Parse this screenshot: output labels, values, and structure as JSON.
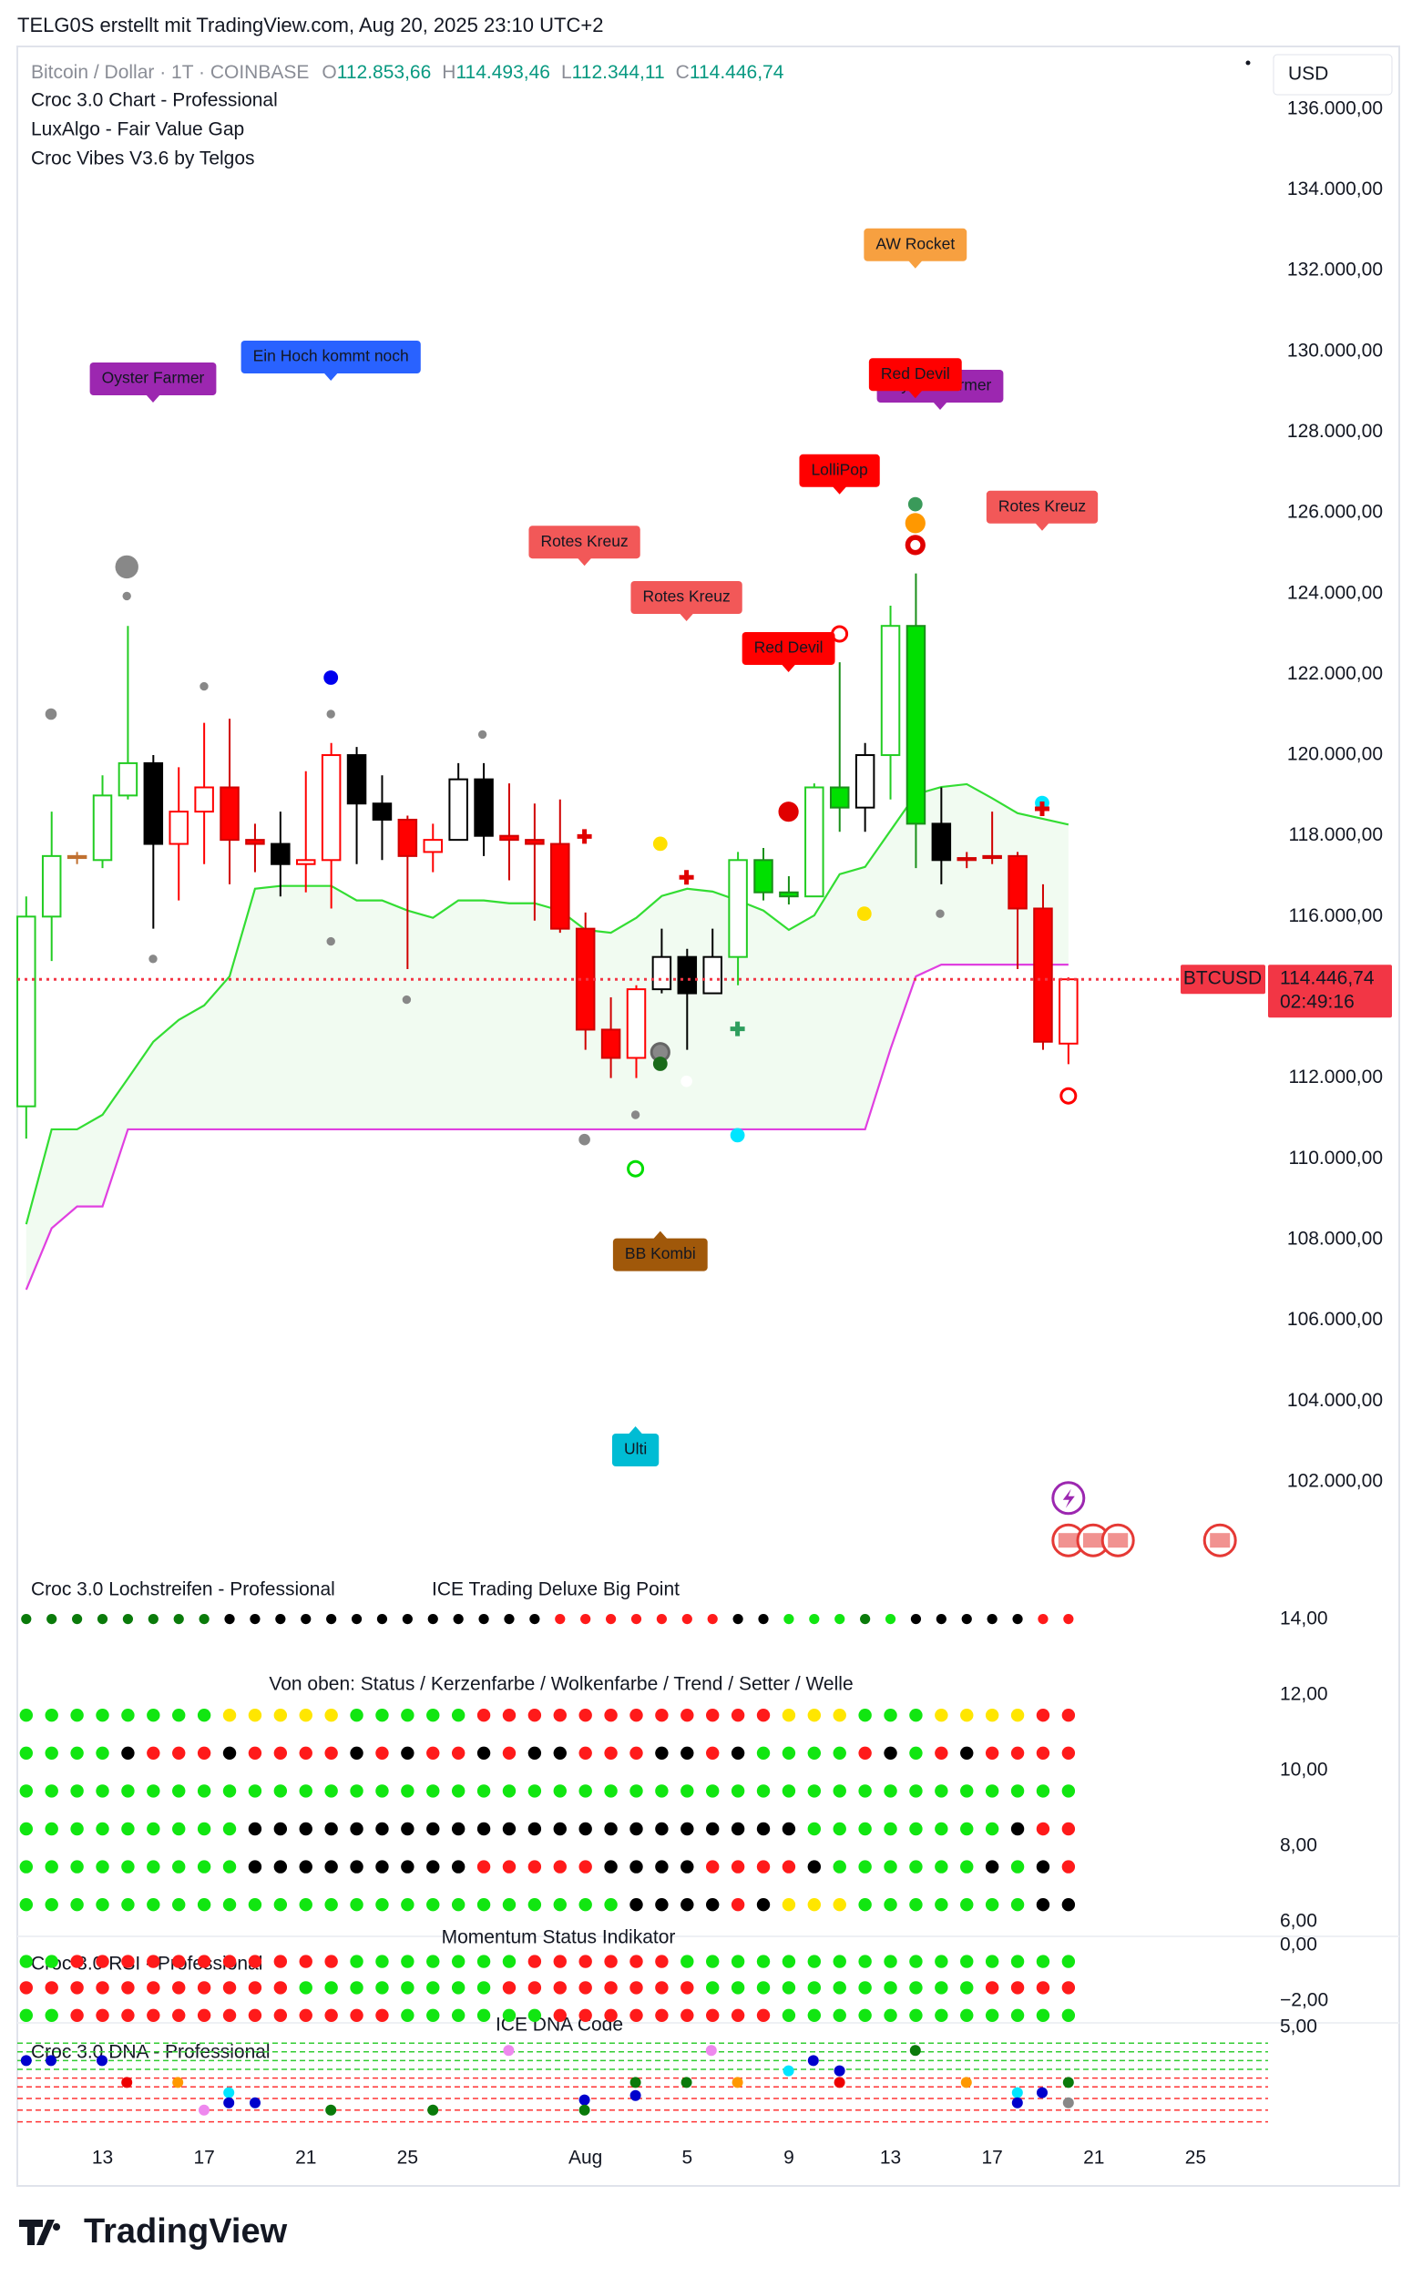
{
  "header": {
    "text": "TELG0S erstellt mit TradingView.com, Aug 20, 2025 23:10 UTC+2"
  },
  "currency": "USD",
  "footer": {
    "brand": "TradingView"
  },
  "chart_data": {
    "type": "candlestick",
    "title": "Bitcoin / Dollar · 1T · COINBASE",
    "ohlc_legend": [
      {
        "prefix": "O",
        "label": "112.853,66"
      },
      {
        "prefix": "H",
        "label": "114.493,46"
      },
      {
        "prefix": "L",
        "label": "112.344,11"
      },
      {
        "prefix": "C",
        "label": "114.446,74"
      }
    ],
    "indicators": [
      "Croc 3.0 Chart - Professional",
      "LuxAlgo - Fair Value Gap",
      "Croc Vibes V3.6 by Telgos"
    ],
    "x": [
      "Jul 10",
      "Jul 11",
      "Jul 12",
      "Jul 13",
      "Jul 14",
      "Jul 15",
      "Jul 16",
      "Jul 17",
      "Jul 18",
      "Jul 19",
      "Jul 20",
      "Jul 21",
      "Jul 22",
      "Jul 23",
      "Jul 24",
      "Jul 25",
      "Jul 26",
      "Jul 27",
      "Jul 28",
      "Jul 29",
      "Jul 30",
      "Jul 31",
      "Aug 1",
      "Aug 2",
      "Aug 3",
      "Aug 4",
      "Aug 5",
      "Aug 6",
      "Aug 7",
      "Aug 8",
      "Aug 9",
      "Aug 10",
      "Aug 11",
      "Aug 12",
      "Aug 13",
      "Aug 14",
      "Aug 15",
      "Aug 16",
      "Aug 17",
      "Aug 18",
      "Aug 19",
      "Aug 20"
    ],
    "open": [
      111300,
      116000,
      117500,
      117400,
      119000,
      119800,
      117800,
      118600,
      119200,
      117900,
      117800,
      117300,
      117400,
      120000,
      118800,
      118400,
      117600,
      117900,
      119400,
      118000,
      117900,
      117800,
      115700,
      113200,
      112500,
      114200,
      115000,
      114100,
      115000,
      117400,
      116600,
      116500,
      119200,
      118700,
      120000,
      123200,
      118300,
      117400,
      117450,
      117500,
      116200,
      112853.66
    ],
    "high": [
      116500,
      118600,
      117600,
      119500,
      123200,
      120000,
      119700,
      120800,
      120900,
      118300,
      118600,
      119600,
      120300,
      120200,
      119500,
      118500,
      118300,
      119800,
      119800,
      119300,
      118800,
      118900,
      116100,
      114000,
      114300,
      115700,
      115200,
      115700,
      117600,
      117700,
      117000,
      119300,
      122300,
      120300,
      123700,
      124500,
      119200,
      117600,
      118600,
      117600,
      116800,
      114493.46
    ],
    "low": [
      110500,
      114900,
      117300,
      117200,
      118900,
      115700,
      116400,
      117300,
      116800,
      117100,
      116500,
      116600,
      116200,
      117300,
      117400,
      114700,
      117100,
      117900,
      117500,
      116900,
      115900,
      115600,
      112700,
      112000,
      112000,
      114100,
      112700,
      114100,
      114300,
      116400,
      116300,
      116500,
      118100,
      118100,
      118900,
      117200,
      116800,
      117200,
      117300,
      114700,
      112700,
      112344.11
    ],
    "close": [
      116000,
      117500,
      117450,
      119000,
      119800,
      117800,
      118600,
      119200,
      117900,
      117800,
      117300,
      117400,
      120000,
      118800,
      118400,
      117500,
      117900,
      119400,
      118000,
      117900,
      117800,
      115700,
      113200,
      112500,
      114200,
      115000,
      114100,
      115000,
      117400,
      116600,
      116500,
      119200,
      118700,
      120000,
      123200,
      118300,
      117400,
      117450,
      117500,
      116200,
      112900,
      114446.74
    ],
    "fills": [
      "#ffffff",
      "#ffffff",
      "#c07030",
      "#ffffff",
      "#ffffff",
      "#000000",
      "#ffffff",
      "#ffffff",
      "#ff0000",
      "#ff0000",
      "#000000",
      "#ffffff",
      "#ffffff",
      "#000000",
      "#000000",
      "#ff0000",
      "#ffffff",
      "#ffffff",
      "#000000",
      "#ff0000",
      "#ff0000",
      "#ff0000",
      "#ff0000",
      "#ff0000",
      "#ffffff",
      "#ffffff",
      "#000000",
      "#ffffff",
      "#ffffff",
      "#00e000",
      "#00e000",
      "#ffffff",
      "#00e000",
      "#ffffff",
      "#ffffff",
      "#00e000",
      "#000000",
      "#ff0000",
      "#ff0000",
      "#ff0000",
      "#ff0000",
      "#ffffff"
    ],
    "strokes": [
      "#22cc22",
      "#22cc22",
      "#c07030",
      "#22cc22",
      "#22cc22",
      "#000000",
      "#ff0000",
      "#ff0000",
      "#d00000",
      "#d00000",
      "#000000",
      "#ff0000",
      "#ff0000",
      "#000000",
      "#000000",
      "#d00000",
      "#ff0000",
      "#000000",
      "#000000",
      "#d00000",
      "#d00000",
      "#d00000",
      "#d00000",
      "#d00000",
      "#ff0000",
      "#000000",
      "#000000",
      "#000000",
      "#22cc22",
      "#1a8f1a",
      "#1a8f1a",
      "#22cc22",
      "#1a8f1a",
      "#000000",
      "#22cc22",
      "#1a8f1a",
      "#000000",
      "#d00000",
      "#d00000",
      "#d00000",
      "#d00000",
      "#ff0000"
    ],
    "lines": [
      {
        "color": "#33dd33",
        "values": [
          108380,
          110730,
          110730,
          111090,
          111990,
          112900,
          113440,
          113800,
          114520,
          116690,
          116760,
          116760,
          116760,
          116400,
          116400,
          116150,
          115970,
          116400,
          116400,
          116330,
          116330,
          116150,
          115670,
          115600,
          115970,
          116510,
          116690,
          116620,
          116400,
          116150,
          115670,
          116030,
          117050,
          117230,
          118130,
          119030,
          119210,
          119280,
          118930,
          118560,
          118420,
          118280
        ]
      },
      {
        "color": "#e040e0",
        "values": [
          106760,
          108280,
          108820,
          108820,
          110730,
          110730,
          110730,
          110730,
          110730,
          110730,
          110730,
          110730,
          110730,
          110730,
          110730,
          110730,
          110730,
          110730,
          110730,
          110730,
          110730,
          110730,
          110730,
          110730,
          110730,
          110730,
          110730,
          110730,
          110730,
          110730,
          110730,
          110730,
          110730,
          110730,
          112720,
          114520,
          114810,
          114810,
          114810,
          114810,
          114810,
          114810
        ]
      }
    ],
    "cloud_color": "rgba(60,200,60,0.07)",
    "ylim": [
      99900,
      137440
    ],
    "yticks": [
      {
        "value": 102000,
        "label": "102.000,00"
      },
      {
        "value": 104000,
        "label": "104.000,00"
      },
      {
        "value": 106000,
        "label": "106.000,00"
      },
      {
        "value": 108000,
        "label": "108.000,00"
      },
      {
        "value": 110000,
        "label": "110.000,00"
      },
      {
        "value": 112000,
        "label": "112.000,00"
      },
      {
        "value": 114000,
        "label": "114.000,00"
      },
      {
        "value": 116000,
        "label": "116.000,00"
      },
      {
        "value": 118000,
        "label": "118.000,00"
      },
      {
        "value": 120000,
        "label": "120.000,00"
      },
      {
        "value": 122000,
        "label": "122.000,00"
      },
      {
        "value": 124000,
        "label": "124.000,00"
      },
      {
        "value": 126000,
        "label": "126.000,00"
      },
      {
        "value": 128000,
        "label": "128.000,00"
      },
      {
        "value": 130000,
        "label": "130.000,00"
      },
      {
        "value": 132000,
        "label": "132.000,00"
      },
      {
        "value": 134000,
        "label": "134.000,00"
      },
      {
        "value": 136000,
        "label": "136.000,00"
      }
    ],
    "xticks": [
      {
        "value": "Jul 13",
        "label": "13"
      },
      {
        "value": "Jul 17",
        "label": "17"
      },
      {
        "value": "Jul 21",
        "label": "21"
      },
      {
        "value": "Jul 25",
        "label": "25"
      },
      {
        "value": "Aug 1",
        "label": "Aug"
      },
      {
        "value": "Aug 5",
        "label": "5"
      },
      {
        "value": "Aug 9",
        "label": "9"
      },
      {
        "value": "Aug 13",
        "label": "13"
      },
      {
        "value": "Aug 17",
        "label": "17"
      },
      {
        "value": "Aug 21",
        "label": "21"
      },
      {
        "value": "Aug 25",
        "label": "25"
      }
    ],
    "last_price": {
      "symbol": "BTCUSD",
      "label": "114.446,74",
      "countdown": "02:49:16",
      "color": "#f23645"
    },
    "annotations": [
      {
        "text": "Oyster Farmer",
        "color": "#9c27b0"
      },
      {
        "text": "Ein Hoch kommt noch",
        "color": "#2962ff"
      },
      {
        "text": "AW Rocket",
        "color": "#f7a040"
      },
      {
        "text": "Oyster Farmer",
        "color": "#9c27b0"
      },
      {
        "text": "Red Devil",
        "color": "#ff0000"
      },
      {
        "text": "LolliPop",
        "color": "#ff0000"
      },
      {
        "text": "Rotes Kreuz",
        "color": "#f25858"
      },
      {
        "text": "Rotes Kreuz",
        "color": "#f25858"
      },
      {
        "text": "Red Devil",
        "color": "#ff0000"
      },
      {
        "text": "Rotes Kreuz",
        "color": "#f25858"
      },
      {
        "text": "BB Kombi",
        "color": "#a0580a"
      },
      {
        "text": "Ulti",
        "color": "#00bcd4"
      }
    ],
    "panes": [
      {
        "titles": [
          "Croc 3.0 Lochstreifen - Professional",
          "ICE Trading Deluxe Big Point",
          "Von oben: Status / Kerzenfarbe / Wolkenfarbe / Trend / Setter / Welle"
        ],
        "ylim": [
          5.6,
          15.0
        ],
        "yticks": [
          {
            "value": 14,
            "label": "14,00"
          },
          {
            "value": 12,
            "label": "12,00"
          },
          {
            "value": 10,
            "label": "10,00"
          },
          {
            "value": 8,
            "label": "8,00"
          },
          {
            "value": 6,
            "label": "6,00"
          }
        ]
      },
      {
        "titles": [
          "Momentum Status Indikator",
          "Croc 3.0 RSI - Professional"
        ],
        "ylim": [
          -3.0,
          0.26
        ],
        "yticks": [
          {
            "value": 0,
            "label": "0,00"
          },
          {
            "value": -2,
            "label": "−2,00"
          }
        ]
      },
      {
        "titles": [
          "ICE DNA Code",
          "Croc 3.0 DNA - Professional"
        ],
        "ylim": [
          -3,
          5.2
        ],
        "yticks": [
          {
            "value": 5,
            "label": "5,00"
          }
        ]
      }
    ]
  }
}
